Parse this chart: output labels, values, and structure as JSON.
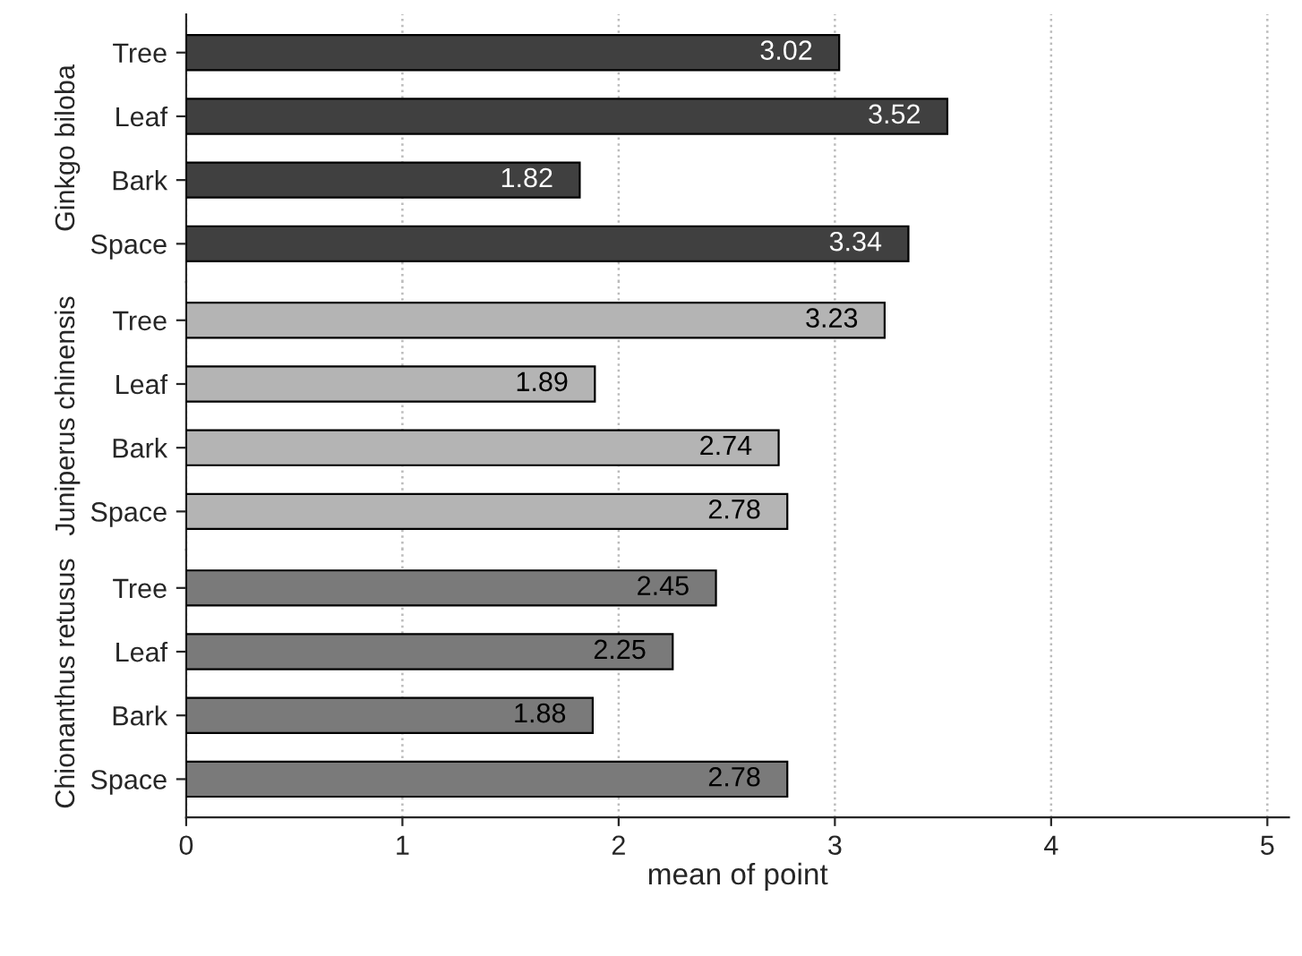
{
  "chart_data": [
    {
      "type": "bar",
      "orientation": "horizontal",
      "ylabel": "Ginkgo biloba",
      "categories": [
        "Tree",
        "Leaf",
        "Bark",
        "Space"
      ],
      "values": [
        3.02,
        3.52,
        1.82,
        3.34
      ],
      "color": "#404040",
      "xlim": [
        0,
        5.1
      ],
      "xticks": [
        0,
        1,
        2,
        3,
        4,
        5
      ],
      "grid": "x",
      "data_labels": true,
      "tick_labels": "y"
    },
    {
      "type": "bar",
      "orientation": "horizontal",
      "ylabel": "Juniperus chinensis",
      "categories": [
        "Tree",
        "Leaf",
        "Bark",
        "Space"
      ],
      "values": [
        3.23,
        1.89,
        2.74,
        2.78
      ],
      "color": "#b4b4b4",
      "xlim": [
        0,
        5.1
      ],
      "xticks": [
        0,
        1,
        2,
        3,
        4,
        5
      ],
      "grid": "x",
      "data_labels": true,
      "tick_labels": "y"
    },
    {
      "type": "bar",
      "orientation": "horizontal",
      "ylabel": "Chionanthus retusus",
      "xlabel": "mean of point",
      "categories": [
        "Tree",
        "Leaf",
        "Bark",
        "Space"
      ],
      "values": [
        2.45,
        2.25,
        1.88,
        2.78
      ],
      "color": "#7a7a7a",
      "xlim": [
        0,
        5.1
      ],
      "xticks": [
        0,
        1,
        2,
        3,
        4,
        5
      ],
      "grid": "x",
      "data_labels": true
    }
  ]
}
